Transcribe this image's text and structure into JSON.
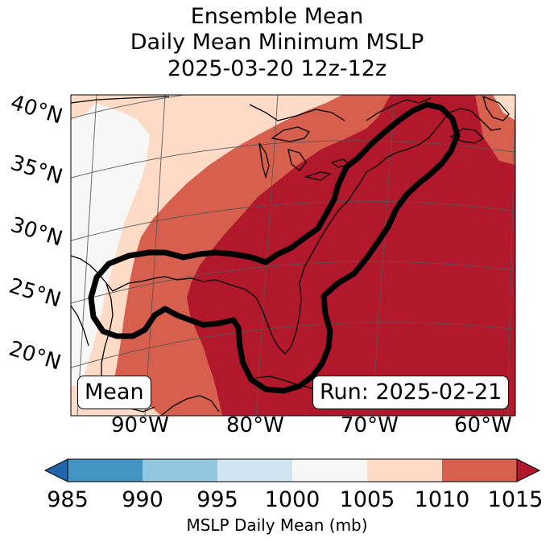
{
  "title": {
    "line1": "Ensemble Mean",
    "line2": "Daily Mean Minimum MSLP",
    "line3": "2025-03-20 12z-12z"
  },
  "map": {
    "lat_labels": [
      "40°N",
      "35°N",
      "30°N",
      "25°N",
      "20°N"
    ],
    "lon_labels": [
      "90°W",
      "80°W",
      "70°W",
      "60°W"
    ],
    "left_box": "Mean",
    "right_box": "Run: 2025-02-21",
    "colors": {
      "lt1000": "#f7f7f7",
      "c1005": "#fddbc7",
      "c1010": "#d6604d",
      "c1015": "#b2182b",
      "coast": "#000000",
      "grid": "#555555"
    }
  },
  "colorbar": {
    "ticks": [
      "985",
      "990",
      "995",
      "1000",
      "1005",
      "1010",
      "1015"
    ],
    "colors": [
      "#2166ac",
      "#4393c3",
      "#92c5de",
      "#d1e5f0",
      "#f7f7f7",
      "#fddbc7",
      "#d6604d",
      "#b2182b"
    ],
    "label": "MSLP Daily Mean (mb)"
  }
}
